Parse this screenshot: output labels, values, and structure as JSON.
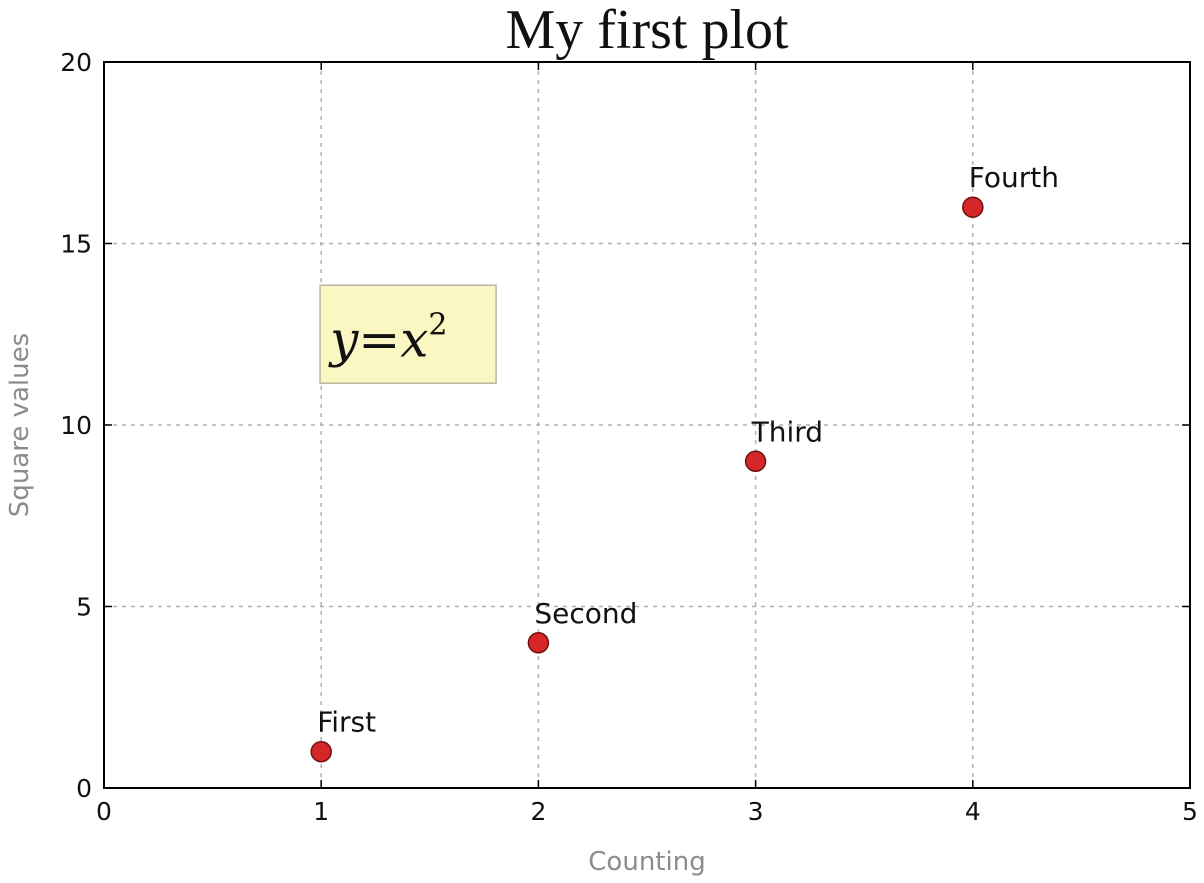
{
  "chart_data": {
    "type": "scatter",
    "title": "My first plot",
    "xlabel": "Counting",
    "ylabel": "Square values",
    "xlim": [
      0,
      5
    ],
    "ylim": [
      0,
      20
    ],
    "xticks": [
      "0",
      "1",
      "2",
      "3",
      "4",
      "5"
    ],
    "yticks": [
      "0",
      "5",
      "10",
      "15",
      "20"
    ],
    "grid": true,
    "series": [
      {
        "x": [
          1,
          2,
          3,
          4
        ],
        "y": [
          1,
          4,
          9,
          16
        ],
        "color": "#d62728",
        "point_labels": [
          "First",
          "Second",
          "Third",
          "Fourth"
        ]
      }
    ],
    "annotation": {
      "base": "y=x",
      "superscript": "2",
      "box_color": "#fbf7c2",
      "x": 1.4,
      "y": 12.5
    }
  }
}
